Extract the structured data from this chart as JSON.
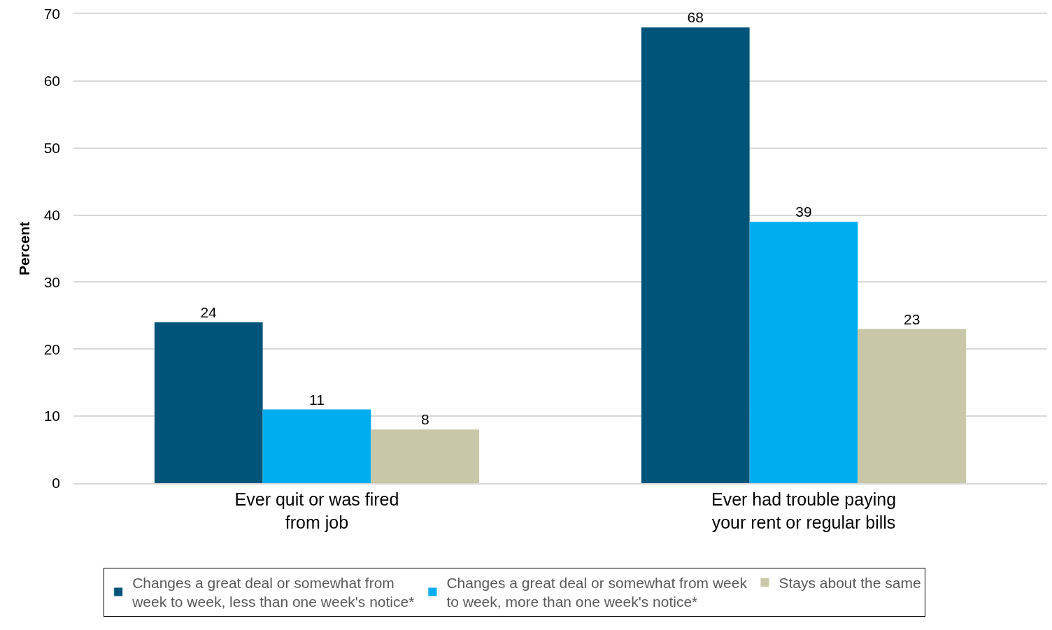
{
  "chart_data": {
    "type": "bar",
    "ylabel": "Percent",
    "categories": [
      "Ever quit or was fired\nfrom job",
      "Ever had trouble paying\nyour rent or regular bills"
    ],
    "series": [
      {
        "name": "Changes a great deal or somewhat from\nweek to week, less than one week's notice*",
        "color": "#00547a",
        "values": [
          24,
          68
        ]
      },
      {
        "name": "Changes a great deal or somewhat from week\nto week, more than one week's notice*",
        "color": "#00aeef",
        "values": [
          11,
          39
        ]
      },
      {
        "name": "Stays about the same",
        "color": "#c8c8a9",
        "values": [
          8,
          23
        ]
      }
    ],
    "ylim": [
      0,
      70
    ],
    "yticks": [
      0,
      10,
      20,
      30,
      40,
      50,
      60,
      70
    ],
    "grid": "y",
    "legend": "bottom",
    "data_labels": true
  }
}
